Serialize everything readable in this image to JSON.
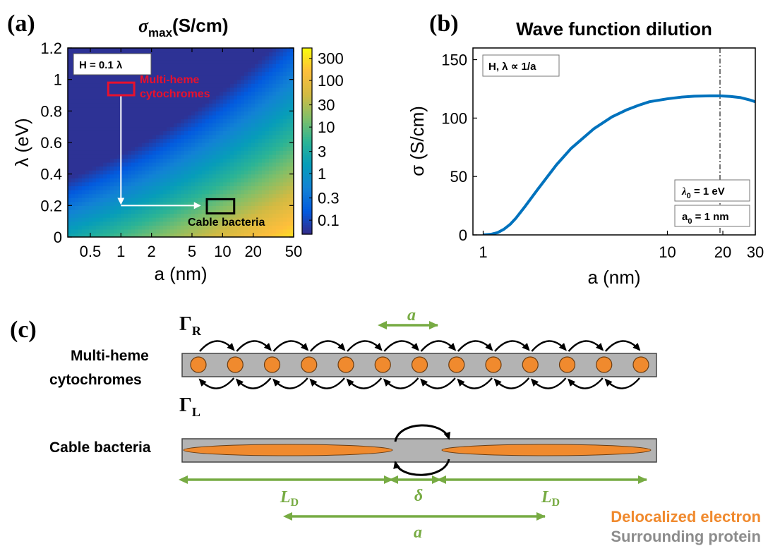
{
  "panels": {
    "a": {
      "label": "(a)"
    },
    "b": {
      "label": "(b)"
    },
    "c": {
      "label": "(c)"
    }
  },
  "chart_data": [
    {
      "type": "heatmap",
      "panel": "(a)",
      "title": "σmax (S/cm)",
      "title_sigma": "σ",
      "title_sub": "max",
      "title_unit": "(S/cm)",
      "xlabel": "a (nm)",
      "ylabel": "λ (eV)",
      "xscale": "log",
      "xlim": [
        0.3,
        50
      ],
      "ylim": [
        0,
        1.2
      ],
      "x_ticks": [
        "0.5",
        "1",
        "2",
        "5",
        "10",
        "20",
        "50"
      ],
      "x_tick_values": [
        0.5,
        1,
        2,
        5,
        10,
        20,
        50
      ],
      "y_ticks": [
        "0",
        "0.2",
        "0.4",
        "0.6",
        "0.8",
        "1",
        "1.2"
      ],
      "y_tick_values": [
        0,
        0.2,
        0.4,
        0.6,
        0.8,
        1,
        1.2
      ],
      "colorbar": {
        "scale": "log",
        "range": [
          0.05,
          500
        ],
        "ticks": [
          "300",
          "100",
          "30",
          "10",
          "3",
          "1",
          "0.3",
          "0.1"
        ],
        "tick_values": [
          300,
          100,
          30,
          10,
          3,
          1,
          0.3,
          0.1
        ],
        "colormap": "parula"
      },
      "annotations": {
        "param_box": "H = 0.1 λ",
        "multiheme_label_1": "Multi-heme",
        "multiheme_label_2": "cytochromes",
        "multiheme_box": {
          "a_range": [
            0.75,
            1.35
          ],
          "lambda_range": [
            0.9,
            0.98
          ]
        },
        "cable_label": "Cable bacteria",
        "cable_box": {
          "a_range": [
            7,
            13
          ],
          "lambda_range": [
            0.15,
            0.24
          ]
        },
        "arrow_path": [
          [
            1.0,
            0.92
          ],
          [
            1.0,
            0.2
          ],
          [
            9.0,
            0.2
          ]
        ]
      }
    },
    {
      "type": "line",
      "panel": "(b)",
      "title": "Wave function dilution",
      "xlabel": "a (nm)",
      "ylabel": "σ (S/cm)",
      "xscale": "log",
      "xlim": [
        0.88,
        30
      ],
      "ylim": [
        0,
        160
      ],
      "x_ticks": [
        "1",
        "10",
        "20",
        "30"
      ],
      "x_tick_values": [
        1,
        10,
        20,
        30
      ],
      "y_ticks": [
        "0",
        "50",
        "100",
        "150"
      ],
      "y_tick_values": [
        0,
        50,
        100,
        150
      ],
      "series": [
        {
          "color": "#0072bd",
          "x": [
            1.0,
            1.1,
            1.2,
            1.3,
            1.4,
            1.5,
            1.7,
            2.0,
            2.5,
            3.0,
            4.0,
            5.0,
            6.0,
            7.0,
            8.0,
            10.0,
            12.0,
            14.0,
            17.0,
            19.3,
            22.0,
            25.0,
            28.0,
            30.0
          ],
          "y": [
            0,
            0.5,
            2,
            5,
            9,
            14,
            25,
            40,
            60,
            74,
            91,
            101,
            107,
            111,
            114,
            116.5,
            118,
            118.7,
            119,
            119,
            118.5,
            117.5,
            115.5,
            114
          ]
        }
      ],
      "vline": {
        "x": 19.3,
        "style": "dash-dot",
        "color": "#555555"
      },
      "annotations": {
        "param_box": "H, λ ∝ 1/a",
        "lambda0_sym": "λ",
        "lambda0_sub": "0",
        "lambda0_val": " = 1 eV",
        "a0_sym": "a",
        "a0_sub": "0",
        "a0_val": " = 1 nm"
      }
    }
  ],
  "diagram": {
    "gamma_r": "Γ",
    "gamma_r_sub": "R",
    "gamma_l": "Γ",
    "gamma_l_sub": "L",
    "spacing_label": "a",
    "multiheme_line1": "Multi-heme",
    "multiheme_line2": "cytochromes",
    "cable_label": "Cable bacteria",
    "ld_sym": "L",
    "ld_sub": "D",
    "delta_label": "δ",
    "a_label": "a",
    "legend_delocalized": "Delocalized electron",
    "legend_protein": "Surrounding protein",
    "heme_count": 13,
    "colors": {
      "electron": "#f08a2e",
      "protein": "#b3b3b3",
      "arrow_green": "#77ab43",
      "legend_orange": "#f08a2e",
      "legend_gray": "#8c8c8c"
    }
  }
}
